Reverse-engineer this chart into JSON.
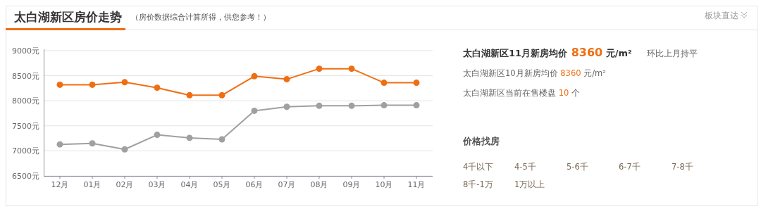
{
  "chart_data": [
    {
      "type": "line",
      "title": "太白湖新区房价走势",
      "subtitle": "（房价数据综合计算所得，供您参考！）",
      "categories": [
        "12月",
        "01月",
        "02月",
        "03月",
        "04月",
        "05月",
        "06月",
        "07月",
        "08月",
        "09月",
        "10月",
        "11月"
      ],
      "series": [
        {
          "color": "#f06e12",
          "values": [
            8320,
            8320,
            8370,
            8260,
            8110,
            8110,
            8490,
            8430,
            8640,
            8640,
            8360,
            8360
          ]
        },
        {
          "color": "#a0a0a0",
          "values": [
            7130,
            7150,
            7030,
            7320,
            7260,
            7230,
            7800,
            7880,
            7900,
            7900,
            7910,
            7910
          ]
        }
      ],
      "ylim": [
        6500,
        9000
      ],
      "yticks": [
        {
          "value": 6500,
          "label": "6500元"
        },
        {
          "value": 7000,
          "label": "7000元"
        },
        {
          "value": 7500,
          "label": "7500元"
        },
        {
          "value": 8000,
          "label": "8000元"
        },
        {
          "value": 8500,
          "label": "8500元"
        },
        {
          "value": 9000,
          "label": "9000元"
        }
      ],
      "grid": "y",
      "marker": "circle",
      "line_style": "solid"
    },
    {
      "type": "other",
      "annotations": [
        "太白湖新区11月新房均价 8360 元/m²",
        "环比上月持平",
        "太白湖新区10月新房均价 8360 元/m²",
        "太白湖新区当前在售楼盘 10 个",
        "价格找房",
        "4千以下",
        "4-5千",
        "5-6千",
        "6-7千",
        "7-8千",
        "8千-1万",
        "1万以上",
        "板块直达"
      ]
    }
  ]
}
